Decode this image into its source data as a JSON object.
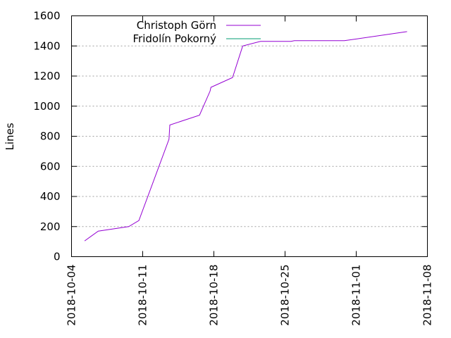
{
  "chart_data": {
    "type": "line",
    "title": "",
    "xlabel": "",
    "ylabel": "Lines",
    "ylim": [
      0,
      1600
    ],
    "xlim": [
      "2018-10-04",
      "2018-11-08"
    ],
    "yticks": [
      0,
      200,
      400,
      600,
      800,
      1000,
      1200,
      1400,
      1600
    ],
    "xticks": [
      "2018-10-04",
      "2018-10-11",
      "2018-10-18",
      "2018-10-25",
      "2018-11-01",
      "2018-11-08"
    ],
    "grid": "horizontal-dashed",
    "legend_position": "top-left",
    "series": [
      {
        "name": "Christoph Görn",
        "color": "#9400d3",
        "points": [
          [
            "2018-10-05 07:00",
            105
          ],
          [
            "2018-10-06 15:00",
            170
          ],
          [
            "2018-10-09 15:00",
            200
          ],
          [
            "2018-10-10 15:00",
            240
          ],
          [
            "2018-10-13 14:00",
            780
          ],
          [
            "2018-10-13 16:00",
            875
          ],
          [
            "2018-10-16 14:00",
            940
          ],
          [
            "2018-10-17 15:00",
            1100
          ],
          [
            "2018-10-17 17:00",
            1125
          ],
          [
            "2018-10-19 20:00",
            1190
          ],
          [
            "2018-10-20 20:00",
            1400
          ],
          [
            "2018-10-22 14:00",
            1430
          ],
          [
            "2018-10-25 14:00",
            1430
          ],
          [
            "2018-10-25 22:00",
            1435
          ],
          [
            "2018-10-30 20:00",
            1435
          ],
          [
            "2018-11-06 00:00",
            1495
          ]
        ]
      },
      {
        "name": "Fridolín Pokorný",
        "color": "#009e73",
        "points": []
      }
    ]
  }
}
